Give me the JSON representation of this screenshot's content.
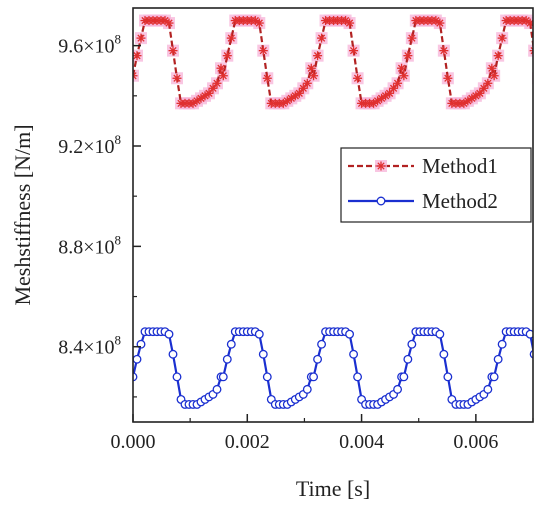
{
  "chart_data": {
    "type": "line",
    "xlabel": "Time [s]",
    "ylabel": "Meshstiffness [N/m]",
    "xlim": [
      0,
      0.007
    ],
    "ylim": [
      810000000.0,
      975000000.0
    ],
    "xticks": [
      "0.000",
      "0.002",
      "0.004",
      "0.006"
    ],
    "xtick_values": [
      0,
      0.002,
      0.004,
      0.006
    ],
    "yticks": [
      {
        "value": 840000000.0,
        "mantissa": "8.4",
        "sep": "×10",
        "exp": "8"
      },
      {
        "value": 880000000.0,
        "mantissa": "8.8",
        "sep": "×10",
        "exp": "8"
      },
      {
        "value": 920000000.0,
        "mantissa": "9.2",
        "sep": "×10",
        "exp": "8"
      },
      {
        "value": 960000000.0,
        "mantissa": "9.6",
        "sep": "×10",
        "exp": "8"
      }
    ],
    "legend_position": "right-middle",
    "grid": false,
    "period": 0.00158,
    "series": [
      {
        "name": "Method1",
        "color": "#b22222",
        "line_style": "dashed",
        "marker": "asterisk",
        "marker_color": "#e03030",
        "highlight": "#f7b3d8",
        "x": [
          0.0,
          7e-05,
          0.00014,
          0.00021,
          0.00028,
          0.00035,
          0.00042,
          0.00049,
          0.00056,
          0.00063,
          0.0007,
          0.00077,
          0.00084,
          0.00091,
          0.00098,
          0.00105,
          0.00112,
          0.00119,
          0.00126,
          0.00133,
          0.0014,
          0.00147,
          0.00154,
          0.00161
        ],
        "y": [
          948000000.0,
          956000000.0,
          963000000.0,
          970000000.0,
          970000000.0,
          970000000.0,
          970000000.0,
          970000000.0,
          970000000.0,
          969000000.0,
          958000000.0,
          947000000.0,
          937000000.0,
          937000000.0,
          937000000.0,
          937000000.0,
          938000000.0,
          939000000.0,
          940000000.0,
          941000000.0,
          943000000.0,
          945000000.0,
          951000000.0,
          958000000.0
        ]
      },
      {
        "name": "Method2",
        "color": "#1a2fd0",
        "line_style": "solid",
        "marker": "open-circle",
        "marker_color": "#1a2fd0",
        "x": [
          0.0,
          7e-05,
          0.00014,
          0.00021,
          0.00028,
          0.00035,
          0.00042,
          0.00049,
          0.00056,
          0.00063,
          0.0007,
          0.00077,
          0.00084,
          0.00091,
          0.00098,
          0.00105,
          0.00112,
          0.00119,
          0.00126,
          0.00133,
          0.0014,
          0.00147,
          0.00154,
          0.00161
        ],
        "y": [
          828000000.0,
          835000000.0,
          841000000.0,
          846000000.0,
          846000000.0,
          846000000.0,
          846000000.0,
          846000000.0,
          846000000.0,
          845000000.0,
          837000000.0,
          828000000.0,
          819000000.0,
          817000000.0,
          817000000.0,
          817000000.0,
          817000000.0,
          818000000.0,
          819000000.0,
          820000000.0,
          821000000.0,
          823000000.0,
          828000000.0,
          834000000.0
        ]
      }
    ]
  }
}
